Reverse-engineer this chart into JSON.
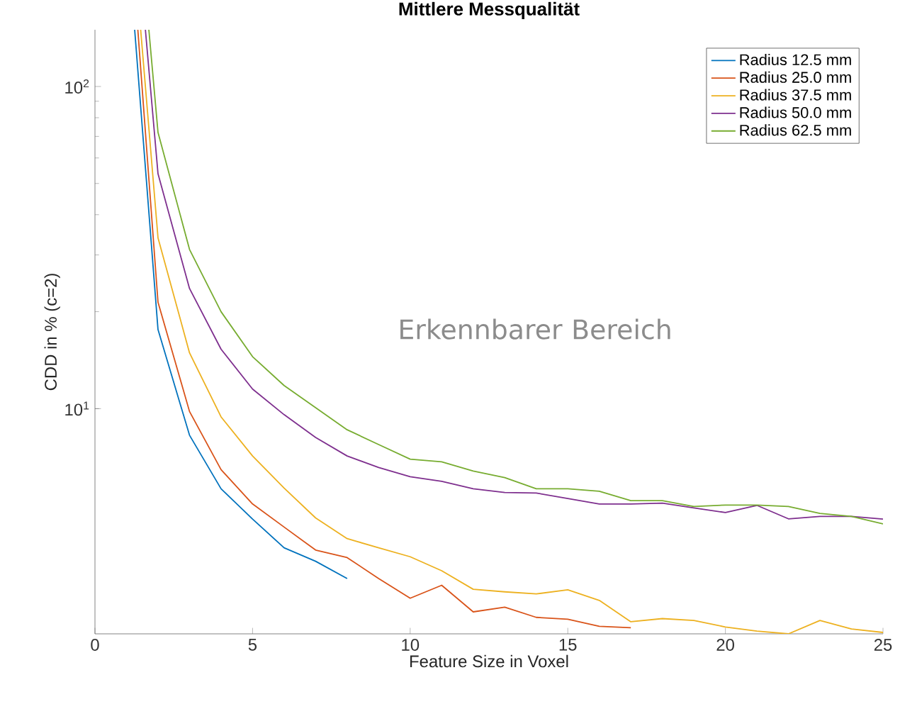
{
  "chart_data": {
    "type": "line",
    "title": "Mittlere Messqualität",
    "xlabel": "Feature Size in Voxel",
    "ylabel": "CDD in % (c=2)",
    "log": "y",
    "xlim": [
      0,
      25
    ],
    "ylim": [
      2,
      150
    ],
    "xticks": [
      0,
      5,
      10,
      15,
      20,
      25
    ],
    "yticks": [
      {
        "value": 10,
        "label": "10$^{1}$"
      },
      {
        "value": 100,
        "label": "10$^{2}$"
      }
    ],
    "legend": "top right",
    "grid": false,
    "marker": "none",
    "line_style": "solid",
    "annotations": [
      "Erkennbarer Bereich"
    ],
    "series": [
      {
        "name": "Radius 12.5 mm",
        "color": "#0072bd",
        "x": [
          1.26,
          2,
          3,
          4,
          5,
          6,
          7,
          8
        ],
        "values": [
          150,
          17.6,
          8.27,
          5.64,
          4.54,
          3.7,
          3.36,
          2.97
        ]
      },
      {
        "name": "Radius 25.0 mm",
        "color": "#d95319",
        "x": [
          1.36,
          2,
          3,
          4,
          5,
          6,
          7,
          8,
          9,
          10,
          11,
          12,
          13,
          14,
          15,
          16,
          17
        ],
        "values": [
          150,
          21.4,
          9.8,
          6.47,
          5.06,
          4.29,
          3.64,
          3.45,
          2.97,
          2.58,
          2.83,
          2.34,
          2.42,
          2.25,
          2.22,
          2.11,
          2.09
        ]
      },
      {
        "name": "Radius 37.5 mm",
        "color": "#edb120",
        "x": [
          1.45,
          2,
          3,
          4,
          5,
          6,
          7,
          8,
          9,
          10,
          11,
          12,
          13,
          14,
          15,
          16,
          17,
          18,
          19,
          20,
          21,
          22,
          23,
          24,
          25
        ],
        "values": [
          150,
          33.9,
          14.9,
          9.43,
          7.13,
          5.67,
          4.58,
          3.95,
          3.7,
          3.47,
          3.14,
          2.75,
          2.7,
          2.66,
          2.74,
          2.54,
          2.18,
          2.23,
          2.2,
          2.1,
          2.04,
          2.0,
          2.2,
          2.07,
          2.02
        ]
      },
      {
        "name": "Radius 50.0 mm",
        "color": "#7e2f8e",
        "x": [
          1.6,
          2,
          3,
          4,
          5,
          6,
          7,
          8,
          9,
          10,
          11,
          12,
          13,
          14,
          15,
          16,
          17,
          18,
          19,
          20,
          21,
          22,
          23,
          24,
          25
        ],
        "values": [
          150,
          53.6,
          23.6,
          15.3,
          11.5,
          9.58,
          8.14,
          7.13,
          6.57,
          6.15,
          5.95,
          5.64,
          5.49,
          5.47,
          5.26,
          5.06,
          5.06,
          5.09,
          4.92,
          4.76,
          5.01,
          4.55,
          4.63,
          4.63,
          4.54
        ]
      },
      {
        "name": "Radius 62.5 mm",
        "color": "#77ac30",
        "x": [
          1.71,
          2,
          3,
          4,
          5,
          6,
          7,
          8,
          9,
          10,
          11,
          12,
          13,
          14,
          15,
          16,
          17,
          18,
          19,
          20,
          21,
          22,
          23,
          24,
          25
        ],
        "values": [
          150,
          72.0,
          31.2,
          20.0,
          14.5,
          11.8,
          10.07,
          8.6,
          7.74,
          6.97,
          6.84,
          6.4,
          6.11,
          5.64,
          5.64,
          5.54,
          5.18,
          5.18,
          4.97,
          5.02,
          5.02,
          4.97,
          4.73,
          4.63,
          4.39
        ]
      }
    ]
  }
}
